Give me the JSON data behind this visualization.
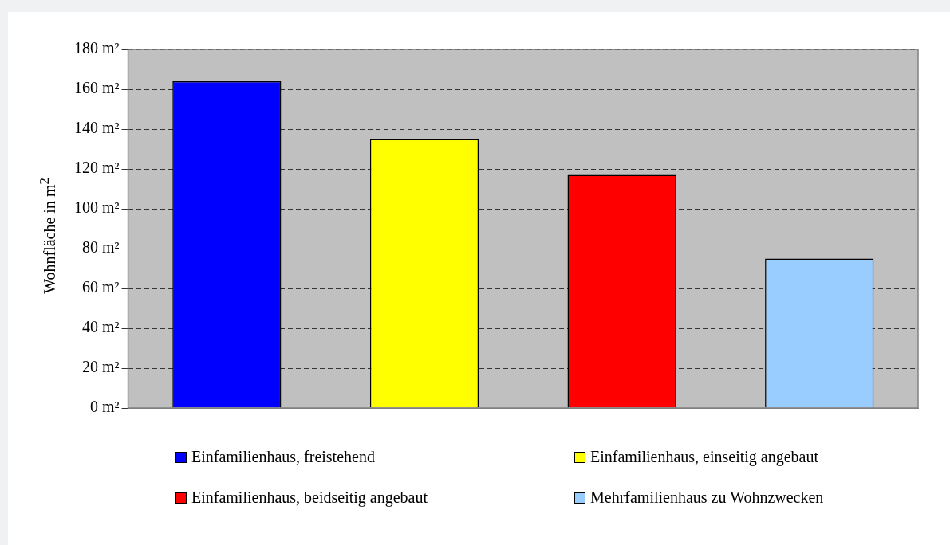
{
  "chart_data": {
    "type": "bar",
    "ylabel": "Wohnfläche in m$^{2}$",
    "categories": [
      null,
      null,
      null,
      null
    ],
    "series": [
      {
        "name": "Einfamilienhaus, freistehend",
        "color": "#0000ff",
        "values": [
          164,
          null,
          null,
          null
        ]
      },
      {
        "name": "Einfamilienhaus, einseitig angebaut",
        "color": "#ffff00",
        "values": [
          null,
          135,
          null,
          null
        ]
      },
      {
        "name": "Einfamilienhaus, beidseitig angebaut",
        "color": "#ff0000",
        "values": [
          null,
          null,
          117,
          null
        ]
      },
      {
        "name": "Mehrfamilienhaus zu Wohnzwecken",
        "color": "#99ccff",
        "values": [
          null,
          null,
          null,
          75
        ]
      }
    ],
    "ylim": [
      0,
      180
    ],
    "yticks": [
      {
        "value": 0,
        "label": "0 m²"
      },
      {
        "value": 20,
        "label": "20 m²"
      },
      {
        "value": 40,
        "label": "40 m²"
      },
      {
        "value": 60,
        "label": "60 m²"
      },
      {
        "value": 80,
        "label": "80 m²"
      },
      {
        "value": 100,
        "label": "100 m²"
      },
      {
        "value": 120,
        "label": "120 m²"
      },
      {
        "value": 140,
        "label": "140 m²"
      },
      {
        "value": 160,
        "label": "160 m²"
      },
      {
        "value": 180,
        "label": "180 m²"
      }
    ],
    "grid": "y",
    "legend": "bottom"
  }
}
